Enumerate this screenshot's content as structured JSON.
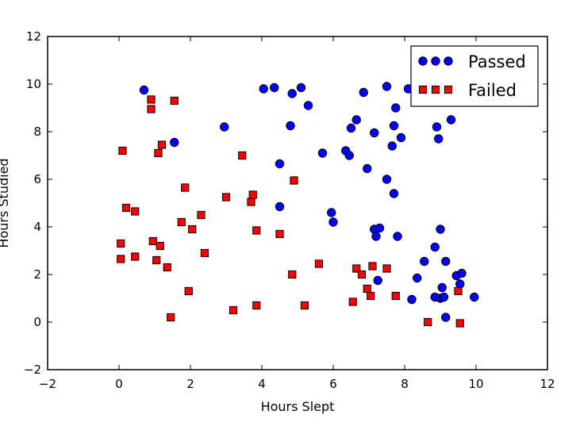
{
  "chart_data": {
    "type": "scatter",
    "xlabel": "Hours Slept",
    "ylabel": "Hours Studied",
    "xlim": [
      -2,
      12
    ],
    "ylim": [
      -2,
      12
    ],
    "xticks": [
      "−2",
      "0",
      "2",
      "4",
      "6",
      "8",
      "10",
      "12"
    ],
    "yticks": [
      "−2",
      "0",
      "2",
      "4",
      "6",
      "8",
      "10",
      "12"
    ],
    "grid": false,
    "legend_position": "top-right",
    "series": [
      {
        "name": "Passed",
        "marker": "circle",
        "color": "#0000ff",
        "points": [
          [
            0.7,
            9.75
          ],
          [
            1.55,
            7.55
          ],
          [
            2.95,
            8.2
          ],
          [
            4.05,
            9.8
          ],
          [
            4.35,
            9.85
          ],
          [
            4.85,
            9.6
          ],
          [
            5.1,
            9.85
          ],
          [
            5.3,
            9.1
          ],
          [
            4.8,
            8.25
          ],
          [
            4.5,
            6.65
          ],
          [
            4.5,
            4.85
          ],
          [
            5.7,
            7.1
          ],
          [
            5.95,
            4.6
          ],
          [
            6.0,
            4.2
          ],
          [
            6.35,
            7.2
          ],
          [
            6.45,
            7.0
          ],
          [
            6.5,
            8.15
          ],
          [
            6.65,
            8.5
          ],
          [
            6.85,
            9.65
          ],
          [
            6.95,
            6.45
          ],
          [
            7.15,
            7.95
          ],
          [
            7.15,
            3.9
          ],
          [
            7.2,
            3.6
          ],
          [
            7.3,
            3.95
          ],
          [
            7.25,
            1.75
          ],
          [
            7.5,
            9.9
          ],
          [
            7.5,
            6.0
          ],
          [
            7.65,
            7.4
          ],
          [
            7.7,
            8.25
          ],
          [
            7.7,
            5.4
          ],
          [
            7.75,
            9.0
          ],
          [
            7.8,
            3.6
          ],
          [
            7.9,
            7.75
          ],
          [
            8.1,
            9.8
          ],
          [
            8.2,
            0.95
          ],
          [
            8.35,
            1.85
          ],
          [
            8.55,
            2.55
          ],
          [
            8.85,
            3.15
          ],
          [
            8.85,
            1.05
          ],
          [
            8.9,
            8.2
          ],
          [
            8.95,
            7.7
          ],
          [
            9.0,
            3.9
          ],
          [
            9.0,
            1.0
          ],
          [
            9.05,
            1.45
          ],
          [
            9.1,
            1.05
          ],
          [
            9.15,
            2.55
          ],
          [
            9.15,
            0.2
          ],
          [
            9.3,
            8.5
          ],
          [
            9.45,
            1.95
          ],
          [
            9.55,
            1.6
          ],
          [
            9.6,
            2.05
          ],
          [
            9.95,
            1.05
          ]
        ]
      },
      {
        "name": "Failed",
        "marker": "square",
        "color": "#ff0000",
        "points": [
          [
            0.1,
            7.2
          ],
          [
            0.2,
            4.8
          ],
          [
            0.45,
            4.65
          ],
          [
            0.05,
            3.3
          ],
          [
            0.05,
            2.65
          ],
          [
            0.45,
            2.75
          ],
          [
            0.9,
            9.35
          ],
          [
            0.9,
            8.95
          ],
          [
            0.95,
            3.4
          ],
          [
            1.05,
            2.6
          ],
          [
            1.1,
            7.1
          ],
          [
            1.15,
            3.2
          ],
          [
            1.2,
            7.45
          ],
          [
            1.35,
            2.3
          ],
          [
            1.45,
            0.2
          ],
          [
            1.55,
            9.3
          ],
          [
            1.75,
            4.2
          ],
          [
            1.85,
            5.65
          ],
          [
            1.95,
            1.3
          ],
          [
            2.05,
            3.9
          ],
          [
            2.3,
            4.5
          ],
          [
            2.4,
            2.9
          ],
          [
            3.0,
            5.25
          ],
          [
            3.2,
            0.5
          ],
          [
            3.45,
            7.0
          ],
          [
            3.7,
            5.05
          ],
          [
            3.75,
            5.35
          ],
          [
            3.85,
            3.85
          ],
          [
            3.85,
            0.7
          ],
          [
            4.5,
            3.7
          ],
          [
            4.85,
            2.0
          ],
          [
            4.9,
            5.95
          ],
          [
            5.2,
            0.7
          ],
          [
            5.6,
            2.45
          ],
          [
            6.55,
            0.85
          ],
          [
            6.65,
            2.25
          ],
          [
            6.8,
            2.0
          ],
          [
            6.95,
            1.4
          ],
          [
            7.05,
            1.1
          ],
          [
            7.1,
            2.35
          ],
          [
            7.5,
            2.25
          ],
          [
            7.75,
            1.1
          ],
          [
            8.65,
            0.0
          ],
          [
            9.5,
            1.3
          ],
          [
            9.55,
            -0.05
          ]
        ]
      }
    ]
  }
}
